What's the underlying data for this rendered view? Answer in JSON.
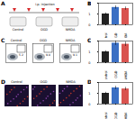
{
  "figure": {
    "A": {
      "letter": "A",
      "header": "i.p. injection",
      "groups": [
        "Control",
        "OGD",
        "NMDA"
      ]
    },
    "C": {
      "letter": "C",
      "flow_plots": [
        {
          "label": "Control",
          "percent": "5.2"
        },
        {
          "label": "OGD",
          "percent": "9.8"
        },
        {
          "label": "NMDA",
          "percent": "9.1"
        }
      ]
    },
    "D": {
      "letter": "D",
      "images": [
        "Control",
        "OGD",
        "NMDA"
      ]
    }
  },
  "chart_data": [
    {
      "type": "bar",
      "title": "B",
      "categories": [
        "Control",
        "OGD",
        "NMDA"
      ],
      "values": [
        1,
        1.6,
        1.5
      ],
      "errors": [
        0.1,
        0.15,
        0.15
      ],
      "colors": [
        "#222222",
        "#3a6fc4",
        "#d9534f"
      ],
      "ylim": [
        0,
        2
      ],
      "yticks": [
        0,
        1,
        2
      ]
    },
    {
      "type": "bar",
      "title": "C",
      "categories": [
        "Control",
        "OGD",
        "NMDA"
      ],
      "values": [
        1,
        1.8,
        1.7
      ],
      "errors": [
        0.1,
        0.2,
        0.2
      ],
      "colors": [
        "#222222",
        "#3a6fc4",
        "#d9534f"
      ],
      "ylim": [
        0,
        2
      ],
      "yticks": [
        0,
        1,
        2
      ]
    },
    {
      "type": "bar",
      "title": "D",
      "categories": [
        "Control",
        "OGD",
        "NMDA"
      ],
      "values": [
        1,
        1.5,
        1.4
      ],
      "errors": [
        0.1,
        0.15,
        0.15
      ],
      "colors": [
        "#222222",
        "#3a6fc4",
        "#d9534f"
      ],
      "ylim": [
        0,
        2
      ],
      "yticks": [
        0,
        1,
        2
      ]
    }
  ]
}
